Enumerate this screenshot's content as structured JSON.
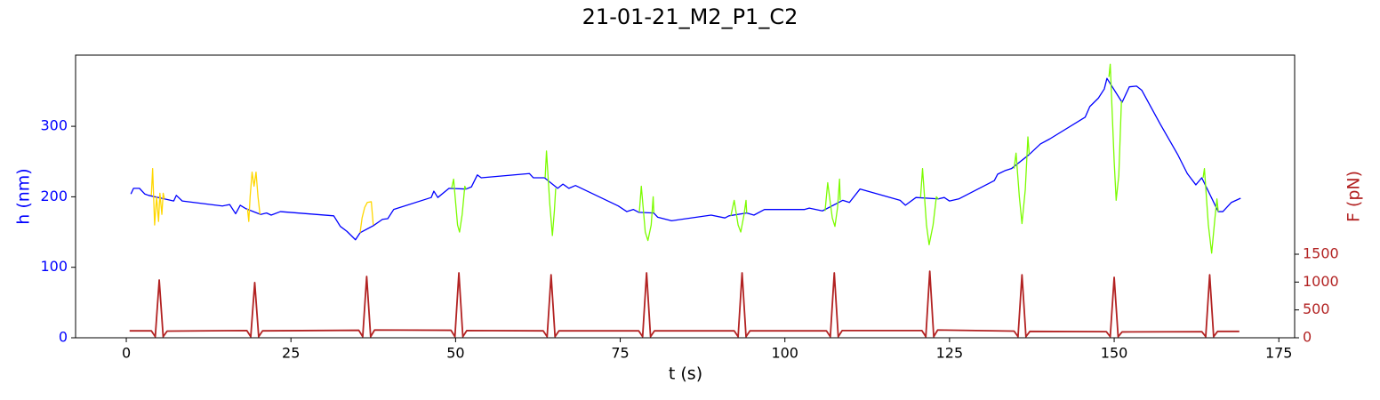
{
  "chart_data": {
    "type": "line",
    "title": "21-01-21_M2_P1_C2",
    "xlabel": "t (s)",
    "ylabel": "h (nm)",
    "y2label": "F (pN)",
    "ylabel_color": "#0000ff",
    "y2label_color": "#b22222",
    "xlim": [
      -7.7,
      177.4
    ],
    "xticks": [
      0,
      25,
      50,
      75,
      100,
      125,
      150,
      175
    ],
    "ylim": [
      0,
      401
    ],
    "yticks": [
      0,
      100,
      200,
      300
    ],
    "y2lim": [
      0,
      5074
    ],
    "y2ticks": [
      0,
      500,
      1000,
      1500
    ],
    "series": [
      {
        "color": "#0000ff",
        "axis": "y",
        "x": [
          0.7,
          1.1,
          2,
          2.8,
          3.4,
          5.8,
          7.2,
          7.6,
          8.5,
          14.6,
          15.7,
          16.6,
          17.3,
          18.2,
          20.4,
          21.3,
          22,
          23.4,
          31.5,
          32.5,
          33.5,
          34.8,
          35.5,
          37.5,
          38.9,
          39.7,
          40.6,
          46.3,
          46.7,
          47.3,
          49,
          51.6,
          52.4,
          53.3,
          53.9,
          61.2,
          61.8,
          63.5,
          65.5,
          66.3,
          67.2,
          68.2,
          74.7,
          76,
          77,
          77.8,
          80.1,
          80.7,
          82.8,
          88.8,
          90.9,
          91.5,
          94.2,
          95.3,
          96.9,
          103,
          103.7,
          105.7,
          108.8,
          109.8,
          111.4,
          117.5,
          118.3,
          119.9,
          123.3,
          124.2,
          125,
          126.4,
          131.8,
          132.3,
          133.4,
          134.4,
          137.1,
          138.8,
          140.2,
          145.6,
          146.3,
          147.6,
          148.5,
          148.9,
          151.2,
          152.3,
          153.4,
          154.2,
          157,
          159.7,
          161.1,
          162.4,
          163.3,
          165.8,
          166.5,
          167.8,
          169.2
        ],
        "values": [
          204,
          212,
          212,
          204,
          202,
          197,
          194,
          202,
          194,
          187,
          189,
          176,
          188,
          183,
          175,
          177,
          174,
          179,
          173,
          158,
          151,
          139,
          149,
          159,
          168,
          169,
          182,
          199,
          208,
          199,
          212,
          211,
          214,
          231,
          227,
          233,
          227,
          227,
          212,
          218,
          212,
          216,
          187,
          179,
          182,
          178,
          177,
          171,
          166,
          174,
          170,
          173,
          177,
          174,
          182,
          182,
          184,
          180,
          195,
          192,
          211,
          195,
          188,
          199,
          197,
          199,
          194,
          197,
          223,
          232,
          237,
          240,
          260,
          275,
          282,
          313,
          328,
          340,
          353,
          368,
          334,
          356,
          357,
          351,
          303,
          259,
          233,
          217,
          227,
          179,
          179,
          192,
          198
        ]
      },
      {
        "color": "#ffd700",
        "axis": "y",
        "x": [
          3.8,
          4.0,
          4.3,
          4.6,
          4.9,
          5.1,
          5.4,
          5.6,
          5.8
        ],
        "values": [
          202,
          240,
          160,
          200,
          165,
          205,
          175,
          205,
          197
        ]
      },
      {
        "color": "#ffd700",
        "axis": "y",
        "x": [
          18.4,
          18.6,
          18.8,
          19.1,
          19.4,
          19.7,
          20,
          20.3
        ],
        "values": [
          183,
          165,
          200,
          235,
          215,
          235,
          200,
          175
        ]
      },
      {
        "color": "#ffd700",
        "axis": "y",
        "x": [
          35.5,
          35.8,
          36.2,
          36.6,
          37.2,
          37.5
        ],
        "values": [
          149,
          170,
          185,
          192,
          193,
          160
        ]
      },
      {
        "color": "#7cfc00",
        "axis": "y",
        "x": [
          49.4,
          49.7,
          50.3,
          50.6,
          51,
          51.4,
          51.6
        ],
        "values": [
          212,
          225,
          160,
          150,
          175,
          215,
          211
        ]
      },
      {
        "color": "#7cfc00",
        "axis": "y",
        "x": [
          63.6,
          63.8,
          64.3,
          64.7,
          65,
          65.2
        ],
        "values": [
          227,
          265,
          190,
          145,
          180,
          212
        ]
      },
      {
        "color": "#7cfc00",
        "axis": "y",
        "x": [
          77.9,
          78.2,
          78.8,
          79.2,
          79.7,
          80,
          80.1
        ],
        "values": [
          178,
          215,
          150,
          138,
          160,
          200,
          177
        ]
      },
      {
        "color": "#7cfc00",
        "axis": "y",
        "x": [
          91.8,
          92.3,
          92.9,
          93.3,
          93.8,
          94.1,
          94.2
        ],
        "values": [
          173,
          195,
          160,
          150,
          175,
          195,
          177
        ]
      },
      {
        "color": "#7cfc00",
        "axis": "y",
        "x": [
          106.1,
          106.5,
          107.2,
          107.6,
          108,
          108.3,
          108.4
        ],
        "values": [
          180,
          220,
          170,
          158,
          185,
          225,
          195
        ]
      },
      {
        "color": "#7cfc00",
        "axis": "y",
        "x": [
          120.6,
          120.9,
          121.5,
          121.9,
          122.5,
          123,
          123.3
        ],
        "values": [
          199,
          240,
          160,
          132,
          160,
          200,
          197
        ]
      },
      {
        "color": "#7cfc00",
        "axis": "y",
        "x": [
          134.8,
          135.1,
          135.6,
          136,
          136.5,
          136.9,
          137.1
        ],
        "values": [
          240,
          262,
          200,
          162,
          210,
          285,
          260
        ]
      },
      {
        "color": "#7cfc00",
        "axis": "y",
        "x": [
          149.2,
          149.4,
          150,
          150.3,
          150.7,
          151.1,
          151.2
        ],
        "values": [
          370,
          388,
          250,
          195,
          230,
          335,
          334
        ]
      },
      {
        "color": "#7cfc00",
        "axis": "y",
        "x": [
          163.5,
          163.7,
          164.3,
          164.8,
          165.3,
          165.6,
          165.8
        ],
        "values": [
          227,
          240,
          160,
          120,
          170,
          197,
          179
        ]
      },
      {
        "color": "#b22222",
        "axis": "y2",
        "x": [
          0.5,
          3.8,
          4.4,
          5,
          5.6,
          6.2,
          18.3,
          18.9,
          19.5,
          20.1,
          20.7,
          35.3,
          35.9,
          36.5,
          37.1,
          37.7,
          49.3,
          49.9,
          50.5,
          51.1,
          51.7,
          63.3,
          63.9,
          64.5,
          65.1,
          65.7,
          77.8,
          78.4,
          79,
          79.6,
          80.2,
          92.3,
          92.9,
          93.5,
          94.1,
          94.7,
          106.3,
          106.9,
          107.5,
          108.1,
          108.7,
          120.8,
          121.4,
          122,
          122.6,
          123.2,
          134.8,
          135.4,
          136,
          136.6,
          137.2,
          148.8,
          149.4,
          150,
          150.6,
          151.2,
          163.3,
          163.9,
          164.5,
          165.1,
          165.7,
          169
        ],
        "values": [
          125,
          125,
          20,
          1037,
          20,
          120,
          130,
          20,
          990,
          20,
          125,
          135,
          20,
          1100,
          20,
          140,
          135,
          20,
          1165,
          20,
          130,
          125,
          20,
          1130,
          20,
          125,
          125,
          20,
          1165,
          20,
          125,
          125,
          20,
          1165,
          20,
          125,
          125,
          20,
          1165,
          20,
          130,
          130,
          20,
          1195,
          20,
          140,
          120,
          20,
          1130,
          20,
          115,
          110,
          20,
          1085,
          20,
          105,
          110,
          20,
          1130,
          20,
          115,
          115
        ]
      }
    ]
  }
}
